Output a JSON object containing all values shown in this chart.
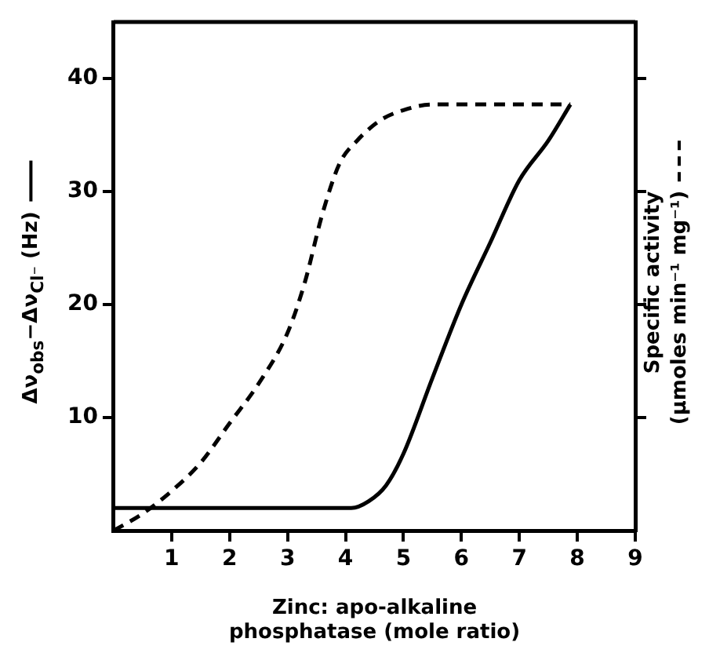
{
  "chart_data": {
    "type": "line",
    "xlabel": "Zinc: apo-alkaline\nphosphatase (mole ratio)",
    "ylabel": "Δν$_{obs}$−Δν$_{Cl⁻}$ (Hz)",
    "y2label": "Specific activity\n(μmoles min⁻¹ mg⁻¹)",
    "xlim": [
      0,
      9
    ],
    "xticks": [
      1,
      2,
      3,
      4,
      5,
      6,
      7,
      8,
      9
    ],
    "ylim": [
      0,
      45
    ],
    "yticks": [
      10,
      20,
      30,
      40
    ],
    "grid": false,
    "legend": false,
    "marker": "none",
    "series": [
      {
        "color": "#000000",
        "line_style": "solid",
        "x": [
          0,
          4.1,
          4.4,
          4.7,
          5,
          5.5,
          6,
          6.5,
          7,
          7.5,
          7.88
        ],
        "values": [
          2,
          2,
          2.6,
          4,
          6.8,
          13.5,
          20,
          25.5,
          31,
          34.5,
          37.7
        ]
      },
      {
        "color": "#000000",
        "line_style": "dashed",
        "x": [
          0,
          0.5,
          1,
          1.5,
          2,
          2.5,
          3,
          3.3,
          3.6,
          3.9,
          4.2,
          4.6,
          5,
          5.5,
          7.88
        ],
        "values": [
          0,
          1.5,
          3.5,
          6,
          9.5,
          13,
          17.5,
          22,
          28,
          32.5,
          34.5,
          36.3,
          37.2,
          37.7,
          37.7
        ]
      }
    ]
  }
}
